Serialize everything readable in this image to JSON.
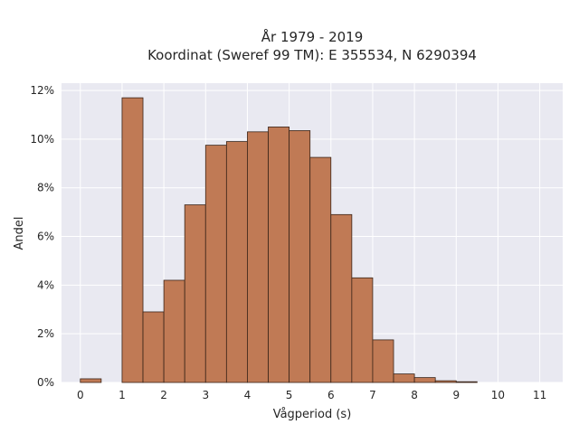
{
  "chart_data": {
    "type": "bar",
    "title_lines": [
      "År 1979 - 2019",
      "Koordinat (Sweref 99 TM): E 355534, N 6290394"
    ],
    "xlabel": "Vågperiod (s)",
    "ylabel": "Andel",
    "bin_width": 0.5,
    "bins": [
      {
        "x": 0.0,
        "value": 0.15
      },
      {
        "x": 0.5,
        "value": 0.0
      },
      {
        "x": 1.0,
        "value": 11.7
      },
      {
        "x": 1.5,
        "value": 2.9
      },
      {
        "x": 2.0,
        "value": 4.2
      },
      {
        "x": 2.5,
        "value": 7.3
      },
      {
        "x": 3.0,
        "value": 9.75
      },
      {
        "x": 3.5,
        "value": 9.9
      },
      {
        "x": 4.0,
        "value": 10.3
      },
      {
        "x": 4.5,
        "value": 10.5
      },
      {
        "x": 5.0,
        "value": 10.35
      },
      {
        "x": 5.5,
        "value": 9.25
      },
      {
        "x": 6.0,
        "value": 6.9
      },
      {
        "x": 6.5,
        "value": 4.3
      },
      {
        "x": 7.0,
        "value": 1.75
      },
      {
        "x": 7.5,
        "value": 0.35
      },
      {
        "x": 8.0,
        "value": 0.2
      },
      {
        "x": 8.5,
        "value": 0.07
      },
      {
        "x": 9.0,
        "value": 0.03
      }
    ],
    "xticks": [
      0,
      1,
      2,
      3,
      4,
      5,
      6,
      7,
      8,
      9,
      10,
      11
    ],
    "yticks": [
      0,
      2,
      4,
      6,
      8,
      10,
      12
    ],
    "ytick_suffix": "%",
    "xlim": [
      -0.45,
      11.55
    ],
    "ylim": [
      0,
      12.3
    ],
    "grid": true,
    "colors": {
      "bar_fill": "#c07a55",
      "bar_edge": "#3a2418",
      "plot_background": "#e9e9f1",
      "grid": "#ffffff"
    }
  }
}
